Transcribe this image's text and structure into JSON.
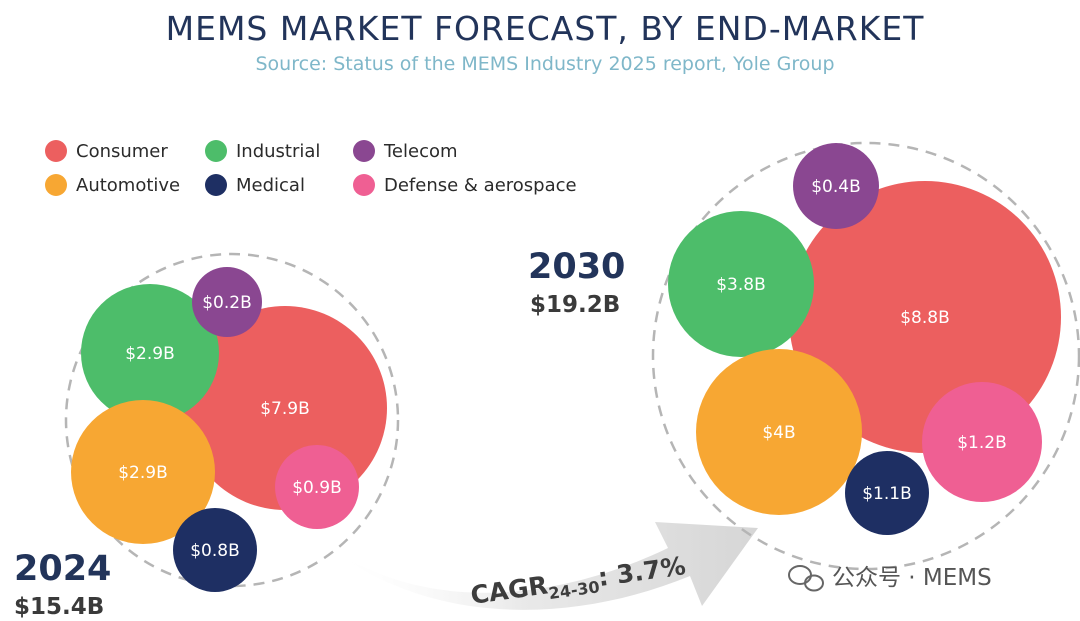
{
  "chart_data": {
    "type": "bubble",
    "title": "MEMS MARKET FORECAST, BY END-MARKET",
    "subtitle": "Source: Status of the MEMS Industry 2025 report, Yole Group",
    "unit": "$B",
    "legend": [
      {
        "name": "Consumer",
        "color": "#ec5f5f"
      },
      {
        "name": "Industrial",
        "color": "#4dbd6a"
      },
      {
        "name": "Telecom",
        "color": "#8a4791"
      },
      {
        "name": "Automotive",
        "color": "#f7a733"
      },
      {
        "name": "Medical",
        "color": "#1e2f63"
      },
      {
        "name": "Defense & aerospace",
        "color": "#ef5f93"
      }
    ],
    "groups": [
      {
        "year": "2024",
        "total": "$15.4B",
        "items": [
          {
            "segment": "Consumer",
            "value": 7.9,
            "label": "$7.9B"
          },
          {
            "segment": "Industrial",
            "value": 2.9,
            "label": "$2.9B"
          },
          {
            "segment": "Telecom",
            "value": 0.2,
            "label": "$0.2B"
          },
          {
            "segment": "Automotive",
            "value": 2.9,
            "label": "$2.9B"
          },
          {
            "segment": "Medical",
            "value": 0.8,
            "label": "$0.8B"
          },
          {
            "segment": "Defense & aerospace",
            "value": 0.9,
            "label": "$0.9B"
          }
        ]
      },
      {
        "year": "2030",
        "total": "$19.2B",
        "items": [
          {
            "segment": "Consumer",
            "value": 8.8,
            "label": "$8.8B"
          },
          {
            "segment": "Industrial",
            "value": 3.8,
            "label": "$3.8B"
          },
          {
            "segment": "Telecom",
            "value": 0.4,
            "label": "$0.4B"
          },
          {
            "segment": "Automotive",
            "value": 4,
            "label": "$4B"
          },
          {
            "segment": "Medical",
            "value": 1.1,
            "label": "$1.1B"
          },
          {
            "segment": "Defense & aerospace",
            "value": 1.2,
            "label": "$1.2B"
          }
        ]
      }
    ],
    "cagr": {
      "prefix": "CAGR",
      "sub": "24-30",
      "value": ": 3.7%"
    }
  },
  "watermark": "公众号 · MEMS"
}
